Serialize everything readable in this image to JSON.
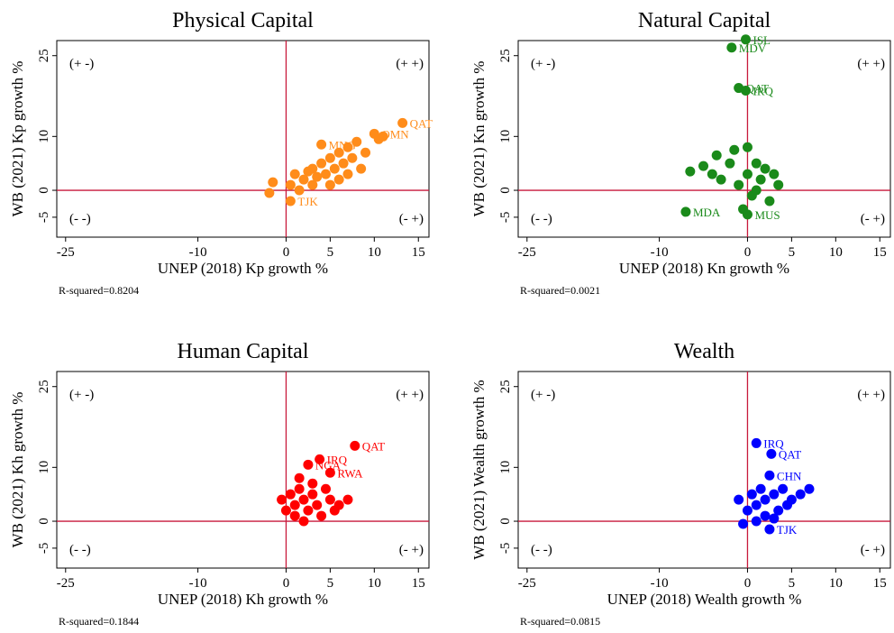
{
  "chart_data": [
    {
      "type": "scatter",
      "title": "Physical Capital",
      "x_label": "UNEP (2018) Kp growth %",
      "y_label": "WB (2021) Kp growth %",
      "note": "R-squared=0.8204",
      "quadrant_labels": {
        "top_left": "(+ -)",
        "top_right": "(+ +)",
        "bottom_left": "(- -)",
        "bottom_right": "(- +)"
      },
      "color": "#ff8c1a",
      "reference_color": "#c8193c",
      "vline": 0,
      "hline": 0,
      "xlim": [
        -26,
        16.2
      ],
      "ylim": [
        -8.7,
        27.8
      ],
      "xticks": [
        -25,
        -10,
        0,
        5,
        10,
        15
      ],
      "yticks": [
        -5,
        0,
        10,
        25
      ],
      "x": [
        -1.9,
        -1.5,
        0.5,
        1,
        1.5,
        2,
        2.5,
        3,
        3,
        3.5,
        4,
        4,
        4.5,
        5,
        5,
        5.5,
        6,
        6,
        6.5,
        7,
        7,
        7.5,
        8,
        8.5,
        9,
        10,
        10.5,
        11,
        13.2,
        0.5
      ],
      "y": [
        -0.5,
        1.5,
        1,
        3,
        0,
        2,
        3.5,
        1,
        4,
        2.5,
        5,
        8.5,
        3,
        6,
        1,
        4,
        7,
        2,
        5,
        8,
        3,
        6,
        9,
        4,
        7,
        10.5,
        9.5,
        10,
        12.5,
        -2
      ],
      "labels": [
        null,
        null,
        null,
        null,
        null,
        null,
        null,
        null,
        null,
        null,
        null,
        "MNG",
        null,
        null,
        null,
        null,
        null,
        null,
        null,
        null,
        null,
        null,
        null,
        null,
        null,
        "OMN",
        null,
        null,
        "QAT",
        "TJK"
      ]
    },
    {
      "type": "scatter",
      "title": "Natural Capital",
      "x_label": "UNEP (2018) Kn growth %",
      "y_label": "WB (2021) Kn growth %",
      "note": "R-squared=0.0021",
      "quadrant_labels": {
        "top_left": "(+ -)",
        "top_right": "(+ +)",
        "bottom_left": "(- -)",
        "bottom_right": "(- +)"
      },
      "color": "#1a8a1a",
      "reference_color": "#c8193c",
      "vline": 0,
      "hline": 0,
      "xlim": [
        -26,
        16.2
      ],
      "ylim": [
        -8.7,
        27.8
      ],
      "xticks": [
        -25,
        -10,
        0,
        5,
        10,
        15
      ],
      "yticks": [
        -5,
        0,
        10,
        25
      ],
      "x": [
        -0.2,
        -1.8,
        -1,
        -0.2,
        -7,
        0,
        -6.5,
        -5,
        -4,
        -3.5,
        -3,
        -2,
        -1.5,
        -1,
        0,
        0,
        0.5,
        1,
        1,
        1.5,
        2,
        2.5,
        3,
        3.5,
        -0.5
      ],
      "y": [
        28,
        26.5,
        19,
        18.5,
        -4,
        -4.5,
        3.5,
        4.5,
        3,
        6.5,
        2,
        5,
        7.5,
        1,
        8,
        3,
        -1,
        5,
        0,
        2,
        4,
        -2,
        3,
        1,
        -3.5
      ],
      "labels": [
        "ISL",
        "MDV",
        "QAT",
        "IRQ",
        "MDA",
        "MUS",
        null,
        null,
        null,
        null,
        null,
        null,
        null,
        null,
        null,
        null,
        null,
        null,
        null,
        null,
        null,
        null,
        null,
        null,
        null
      ]
    },
    {
      "type": "scatter",
      "title": "Human Capital",
      "x_label": "UNEP (2018) Kh growth %",
      "y_label": "WB (2021) Kh growth %",
      "note": "R-squared=0.1844",
      "quadrant_labels": {
        "top_left": "(+ -)",
        "top_right": "(+ +)",
        "bottom_left": "(- -)",
        "bottom_right": "(- +)"
      },
      "color": "#ff0000",
      "reference_color": "#c8193c",
      "vline": 0,
      "hline": 0,
      "xlim": [
        -26,
        16.2
      ],
      "ylim": [
        -8.7,
        27.8
      ],
      "xticks": [
        -25,
        -10,
        0,
        5,
        10,
        15
      ],
      "yticks": [
        -5,
        0,
        10,
        25
      ],
      "x": [
        7.8,
        3.8,
        2.5,
        5,
        -0.5,
        0,
        0.5,
        1,
        1,
        1.5,
        2,
        2,
        2.5,
        3,
        3,
        3.5,
        4,
        4.5,
        5,
        5.5,
        6,
        7,
        1.5
      ],
      "y": [
        14,
        11.5,
        10.5,
        9,
        4,
        2,
        5,
        1,
        3,
        6,
        4,
        0,
        2,
        5,
        7,
        3,
        1,
        6,
        4,
        2,
        3,
        4,
        8
      ],
      "labels": [
        "QAT",
        "IRQ",
        "NGA",
        "RWA",
        null,
        null,
        null,
        null,
        null,
        null,
        null,
        null,
        null,
        null,
        null,
        null,
        null,
        null,
        null,
        null,
        null,
        null,
        null
      ]
    },
    {
      "type": "scatter",
      "title": "Wealth",
      "x_label": "UNEP (2018) Wealth growth %",
      "y_label": "WB (2021) Wealth growth %",
      "note": "R-squared=0.0815",
      "quadrant_labels": {
        "top_left": "(+ -)",
        "top_right": "(+ +)",
        "bottom_left": "(- -)",
        "bottom_right": "(- +)"
      },
      "color": "#0000ff",
      "reference_color": "#c8193c",
      "vline": 0,
      "hline": 0,
      "xlim": [
        -26,
        16.2
      ],
      "ylim": [
        -8.7,
        27.8
      ],
      "xticks": [
        -25,
        -10,
        0,
        5,
        10,
        15
      ],
      "yticks": [
        -5,
        0,
        10,
        25
      ],
      "x": [
        1,
        2.7,
        2.5,
        2.5,
        -1,
        0,
        -0.5,
        0.5,
        1,
        1.5,
        2,
        2,
        3,
        3.5,
        4,
        4.5,
        5,
        6,
        7,
        1,
        3
      ],
      "y": [
        14.5,
        12.5,
        8.5,
        -1.5,
        4,
        2,
        -0.5,
        5,
        3,
        6,
        1,
        4,
        5,
        2,
        6,
        3,
        4,
        5,
        6,
        0,
        0.5
      ],
      "labels": [
        "IRQ",
        "QAT",
        "CHN",
        "TJK",
        null,
        null,
        null,
        null,
        null,
        null,
        null,
        null,
        null,
        null,
        null,
        null,
        null,
        null,
        null,
        null,
        null
      ]
    }
  ]
}
